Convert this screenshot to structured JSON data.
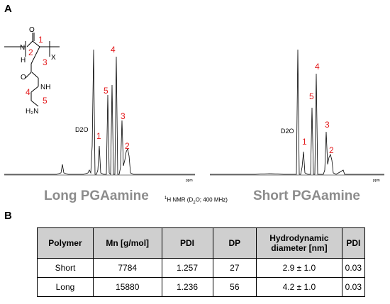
{
  "panels": {
    "a": "A",
    "b": "B"
  },
  "structure": {
    "nh_label": "N\nH",
    "o_label": "O",
    "x_label": "X",
    "nh2_label": "NH",
    "h2n_label": "H₂N",
    "numbers": [
      "1",
      "2",
      "3",
      "4",
      "5"
    ]
  },
  "spectra": [
    {
      "title": "Long PGAamine",
      "solvent_label": "D2O",
      "peak_labels": [
        "1",
        "2",
        "3",
        "4",
        "5"
      ],
      "axis_unit": "ppm"
    },
    {
      "title": "Short PGAamine",
      "solvent_label": "D2O",
      "peak_labels": [
        "1",
        "2",
        "3",
        "4",
        "5"
      ],
      "axis_unit": "ppm"
    }
  ],
  "nmr_caption": {
    "prefix": "1",
    "text1": "H NMR (D",
    "sub": "2",
    "text2": "O; 400 MHz)"
  },
  "table": {
    "headers": [
      "Polymer",
      "Mn [g/mol]",
      "PDI",
      "DP",
      "Hydrodynamic diameter [nm]",
      "PDI"
    ],
    "rows": [
      [
        "Short",
        "7784",
        "1.257",
        "27",
        "2.9 ± 1.0",
        "0.03"
      ],
      [
        "Long",
        "15880",
        "1.236",
        "56",
        "4.2 ± 1.0",
        "0.03"
      ]
    ]
  },
  "colors": {
    "label_red": "#e31a1c",
    "title_gray": "#8c8c8c",
    "header_gray": "#cfcfcf"
  }
}
